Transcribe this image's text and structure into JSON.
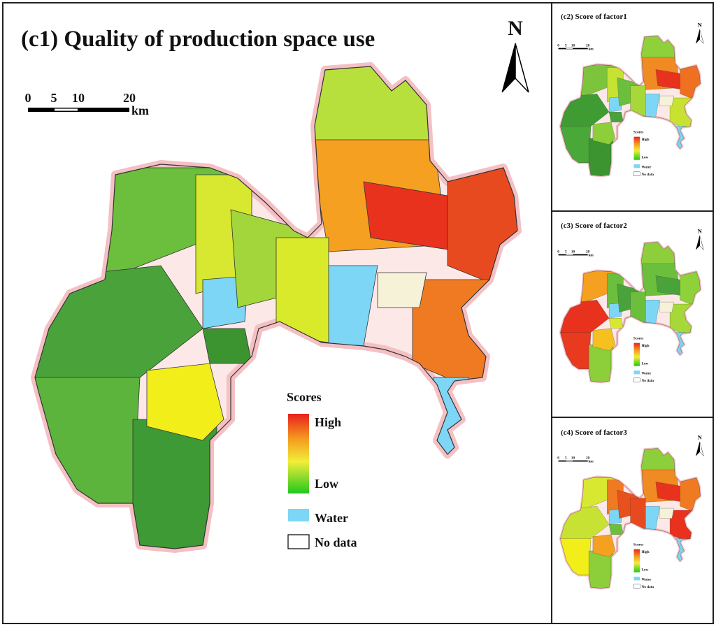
{
  "panels": [
    {
      "title": "(c1) Quality of production space use",
      "north": "N",
      "scale": {
        "ticks": [
          "0",
          "5",
          "10",
          "20"
        ],
        "unit": "km"
      },
      "legend": {
        "title": "Scores",
        "high": "High",
        "low": "Low",
        "water": "Water",
        "no_data": "No data"
      }
    },
    {
      "title": "(c2) Score of factor1",
      "north": "N",
      "scale": {
        "ticks": [
          "0",
          "5",
          "10",
          "20"
        ],
        "unit": "km"
      },
      "legend": {
        "title": "Scores",
        "high": "High",
        "low": "Low",
        "water": "Water",
        "no_data": "No data"
      }
    },
    {
      "title": "(c3) Score of factor2",
      "north": "N",
      "scale": {
        "ticks": [
          "0",
          "5",
          "10",
          "20"
        ],
        "unit": "km"
      },
      "legend": {
        "title": "Scores",
        "high": "High",
        "low": "Low",
        "water": "Water",
        "no_data": "No data"
      }
    },
    {
      "title": "(c4) Score of factor3",
      "north": "N",
      "scale": {
        "ticks": [
          "0",
          "5",
          "10",
          "20"
        ],
        "unit": "km"
      },
      "legend": {
        "title": "Scores",
        "high": "High",
        "low": "Low",
        "water": "Water",
        "no_data": "No data"
      }
    }
  ]
}
